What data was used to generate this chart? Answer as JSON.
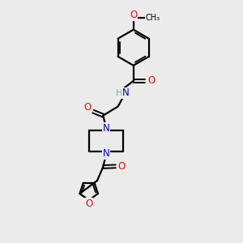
{
  "bg_color": "#ebebeb",
  "atom_colors": {
    "C": "#000000",
    "N": "#0000cc",
    "O": "#ff0000",
    "H": "#7faaaa"
  },
  "bond_color": "#000000",
  "bond_width": 1.6,
  "font_size_atom": 8.5,
  "font_size_small": 7.5
}
